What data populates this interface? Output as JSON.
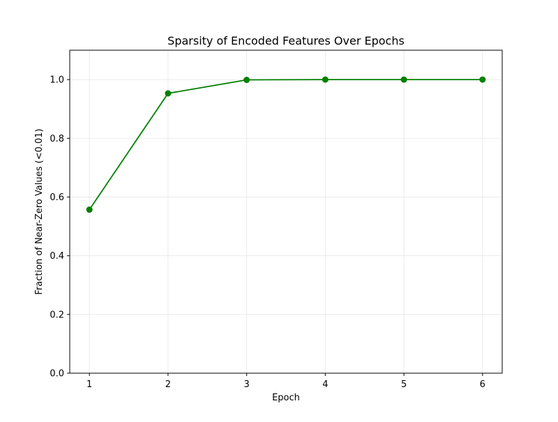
{
  "chart_data": {
    "type": "line",
    "title": "Sparsity of Encoded Features Over Epochs",
    "xlabel": "Epoch",
    "ylabel": "Fraction of Near-Zero Values (<0.01)",
    "x": [
      1,
      2,
      3,
      4,
      5,
      6
    ],
    "xticks": [
      "1",
      "2",
      "3",
      "4",
      "5",
      "6"
    ],
    "yticks": [
      "0.0",
      "0.2",
      "0.4",
      "0.6",
      "0.8",
      "1.0"
    ],
    "xlim": [
      0.75,
      6.25
    ],
    "ylim": [
      0.0,
      1.1
    ],
    "grid": true,
    "series": [
      {
        "values": [
          0.557,
          0.953,
          0.999,
          1.0,
          1.0,
          1.0
        ],
        "color": "#008000",
        "marker": "circle"
      }
    ]
  }
}
